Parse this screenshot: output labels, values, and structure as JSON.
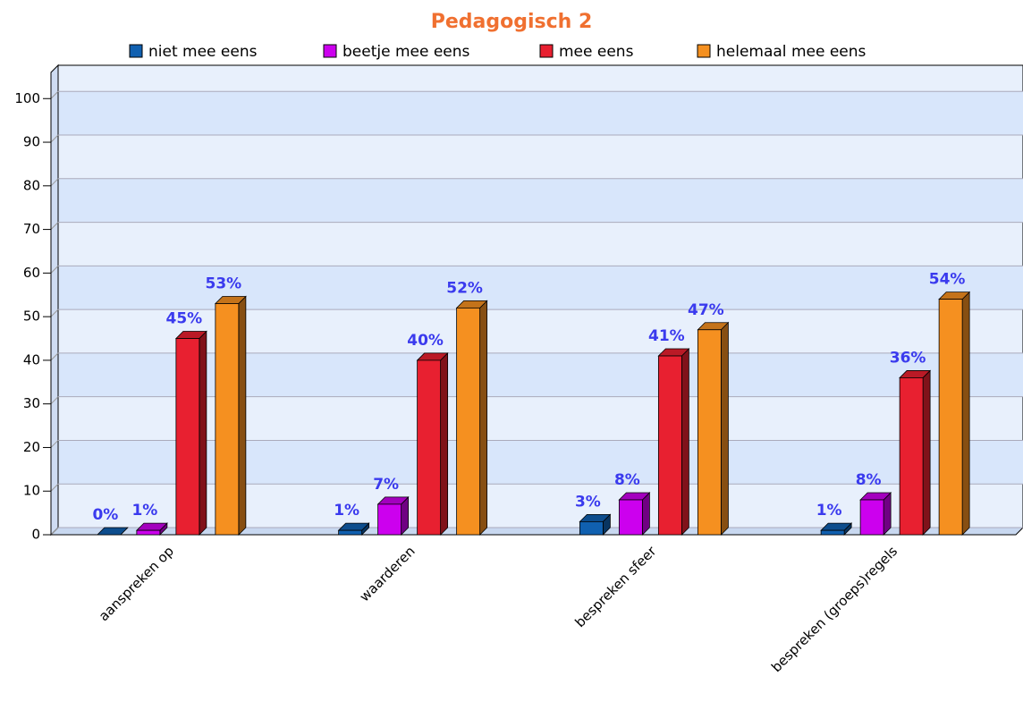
{
  "chart_data": {
    "type": "bar3d",
    "title": "Pedagogisch 2",
    "categories": [
      "aanspreken op",
      "waarderen",
      "bespreken sfeer",
      "bespreken (groeps)regels"
    ],
    "series": [
      {
        "name": "niet mee eens",
        "color": "#1060b0",
        "values": [
          0,
          1,
          3,
          1
        ],
        "value_labels": [
          "0%",
          "1%",
          "3%",
          "1%"
        ]
      },
      {
        "name": "beetje mee eens",
        "color": "#cc00ee",
        "values": [
          1,
          7,
          8,
          8
        ],
        "value_labels": [
          "1%",
          "7%",
          "8%",
          "8%"
        ]
      },
      {
        "name": "mee eens",
        "color": "#e82030",
        "values": [
          45,
          40,
          41,
          36
        ],
        "value_labels": [
          "45%",
          "40%",
          "41%",
          "36%"
        ]
      },
      {
        "name": "helemaal mee eens",
        "color": "#f59020",
        "values": [
          53,
          52,
          47,
          54
        ],
        "value_labels": [
          "53%",
          "52%",
          "47%",
          "54%"
        ]
      }
    ],
    "ylim": [
      0,
      106
    ],
    "yticks": [
      0,
      10,
      20,
      30,
      40,
      50,
      60,
      70,
      80,
      90,
      100
    ],
    "grid": true,
    "legend": "top"
  }
}
